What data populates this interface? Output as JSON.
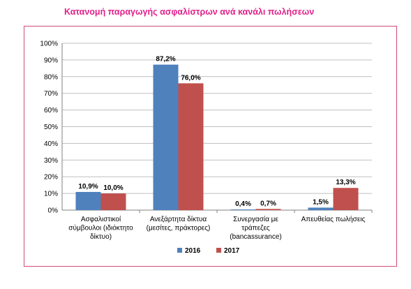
{
  "title": "Κατανομή παραγωγής ασφαλίστρων ανά κανάλι πωλήσεων",
  "chart_data": {
    "type": "bar",
    "categories": [
      [
        "Ασφαλιστικοί",
        "σύμβουλοι (ιδιόκτητο",
        "δίκτυο)"
      ],
      [
        "Ανεξάρτητα δίκτυα",
        "(μεσίτες, πράκτορες)"
      ],
      [
        "Συνεργασία με",
        "τράπεζες",
        "(bancassurance)"
      ],
      [
        "Απευθείας πωλήσεις"
      ]
    ],
    "series": [
      {
        "name": "2016",
        "color": "#4F81BD",
        "values": [
          10.9,
          87.2,
          0.4,
          1.5
        ],
        "labels": [
          "10,9%",
          "87,2%",
          "0,4%",
          "1,5%"
        ]
      },
      {
        "name": "2017",
        "color": "#C0504D",
        "values": [
          10.0,
          76.0,
          0.7,
          13.3
        ],
        "labels": [
          "10,0%",
          "76,0%",
          "0,7%",
          "13,3%"
        ]
      }
    ],
    "ylim": [
      0,
      100
    ],
    "yticks": [
      "0%",
      "10%",
      "20%",
      "30%",
      "40%",
      "50%",
      "60%",
      "70%",
      "80%",
      "90%",
      "100%"
    ],
    "grid": true,
    "legend": "bottom"
  }
}
